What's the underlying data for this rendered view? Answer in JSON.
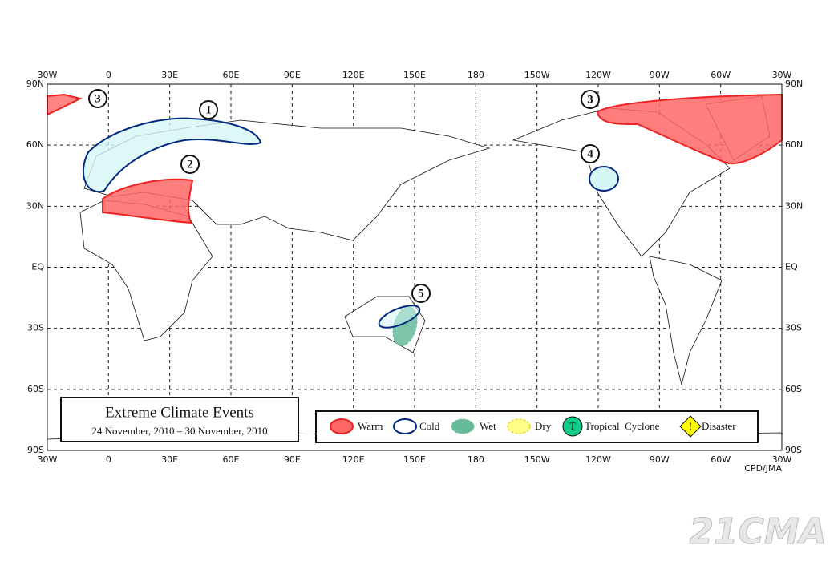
{
  "map": {
    "lon_labels": [
      "30W",
      "0",
      "30E",
      "60E",
      "90E",
      "120E",
      "150E",
      "180",
      "150W",
      "120W",
      "90W",
      "60W",
      "30W"
    ],
    "lat_labels": [
      "90N",
      "60N",
      "30N",
      "EQ",
      "30S",
      "60S",
      "90S"
    ],
    "event_markers": [
      "1",
      "2",
      "3",
      "3",
      "4",
      "5"
    ],
    "credit": "CPD/JMA"
  },
  "title_box": {
    "title": "Extreme Climate Events",
    "subtitle": "24 November, 2010 – 30 November, 2010"
  },
  "legend": {
    "items": [
      "Warm",
      "Cold",
      "Wet",
      "Dry",
      "Tropical  Cyclone",
      "Disaster"
    ],
    "cyclone_icon": "T",
    "disaster_icon": "!"
  },
  "watermark": "21CMA"
}
